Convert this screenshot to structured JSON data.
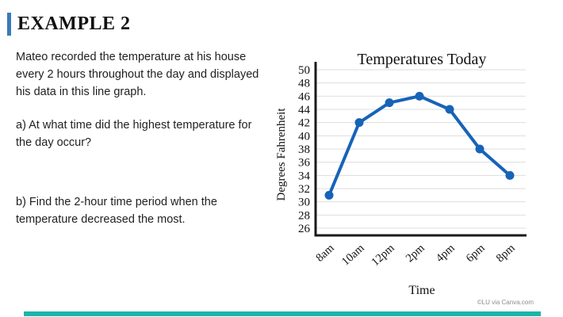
{
  "slide": {
    "heading": "EXAMPLE 2",
    "intro": "Mateo recorded the temperature at his house every 2 hours throughout the day and displayed his data in this line graph.",
    "question_a": "a) At what time did the highest temperature for the day occur?",
    "question_b": "b) Find the 2-hour time period when the temperature decreased the most.",
    "attribution": "©LU via Canva.com",
    "accent_color": "#3c79b8",
    "footer_bar_color": "#1db3a8"
  },
  "chart_data": {
    "type": "line",
    "title": "Temperatures Today",
    "xlabel": "Time",
    "ylabel": "Degrees Fahrenheit",
    "categories": [
      "8am",
      "10am",
      "12pm",
      "2pm",
      "4pm",
      "6pm",
      "8pm"
    ],
    "series": [
      {
        "name": "Temperature",
        "values": [
          31,
          42,
          45,
          46,
          44,
          38,
          34
        ]
      }
    ],
    "ylim": [
      26,
      50
    ],
    "ytick_step": 2,
    "grid": true,
    "legend": "none",
    "line_color": "#1663b8",
    "grid_color": "#dedede",
    "axis_color": "#1a1a1a"
  }
}
